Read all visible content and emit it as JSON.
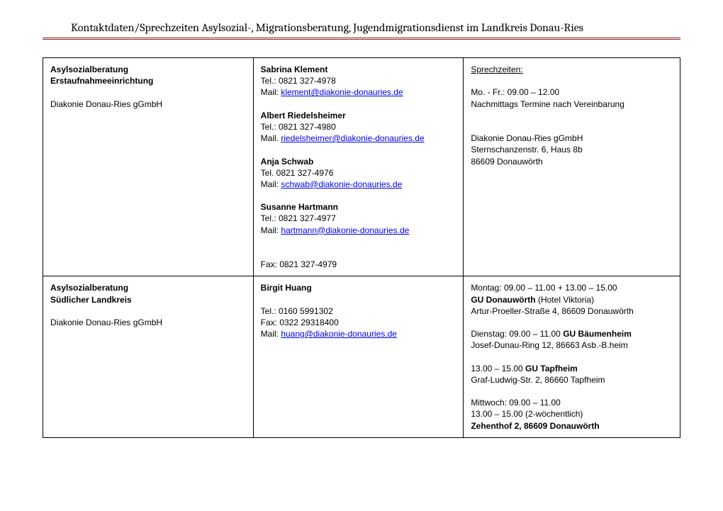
{
  "header": {
    "title": "Kontaktdaten/Sprechzeiten Asylsozial-, Migrationsberatung, Jugendmigrationsdienst im Landkreis Donau-Ries"
  },
  "row1": {
    "left_line1": "Asylsozialberatung",
    "left_line2": "Erstaufnahmeeinrichtung",
    "left_org": "Diakonie Donau-Ries gGmbH",
    "p1_name": "Sabrina Klement",
    "p1_tel": "Tel.: 0821 327-4978",
    "p1_mail_label": "Mail: ",
    "p1_mail": "klement@diakonie-donauries.de",
    "p2_name": "Albert Riedelsheimer",
    "p2_tel": "Tel.: 0821 327-4980",
    "p2_mail_label": "Mail. ",
    "p2_mail": "riedelsheimer@diakonie-donauries.de",
    "p3_name": "Anja Schwab",
    "p3_tel": "Tel. 0821 327-4976",
    "p3_mail_label": "Mail: ",
    "p3_mail": "schwab@diakonie-donauries.de",
    "p4_name": "Susanne Hartmann",
    "p4_tel": "Tel.: 0821 327-4977",
    "p4_mail_label": "Mail: ",
    "p4_mail": "hartmann@diakonie-donauries.de",
    "fax": "Fax: 0821 327-4979",
    "hours_label": "Sprechzeiten:",
    "hours_line1": "Mo. - Fr.: 09.00 – 12.00",
    "hours_line2": "Nachmittags Termine nach Vereinbarung",
    "addr1": "Diakonie Donau-Ries gGmbH",
    "addr2": "Sternschanzenstr. 6, Haus 8b",
    "addr3": "86609 Donauwörth"
  },
  "row2": {
    "left_line1": "Asylsozialberatung",
    "left_line2": "Südlicher Landkreis",
    "left_org": "Diakonie Donau-Ries gGmbH",
    "p1_name": "Birgit Huang",
    "p1_tel": "Tel.: 0160 5991302",
    "p1_fax": "Fax: 0322 29318400",
    "p1_mail_label": "Mail: ",
    "p1_mail": "huang@diakonie-donauries.de",
    "mon_time": "Montag: 09.00 – 11.00 + 13.00 – 15.00",
    "mon_loc_bold": "GU Donauwörth",
    "mon_loc_rest": " (Hotel Viktoria)",
    "mon_addr": "Artur-Proeller-Straße 4, 86609 Donauwörth",
    "tue_time_pre": "Dienstag: 09.00 – 11.00 ",
    "tue_loc_bold": "GU Bäumenheim",
    "tue_addr": "Josef-Dunau-Ring 12, 86663 Asb.-B.heim",
    "tue2_time_pre": "13.00 – 15.00 ",
    "tue2_loc_bold": "GU Tapfheim",
    "tue2_addr": "Graf-Ludwig-Str. 2, 86660 Tapfheim",
    "wed_time1": "Mittwoch: 09.00 – 11.00",
    "wed_time2": "13.00 – 15.00 (2-wöchentlich)",
    "wed_loc_bold": "Zehenthof 2, 86609 Donauwörth"
  }
}
